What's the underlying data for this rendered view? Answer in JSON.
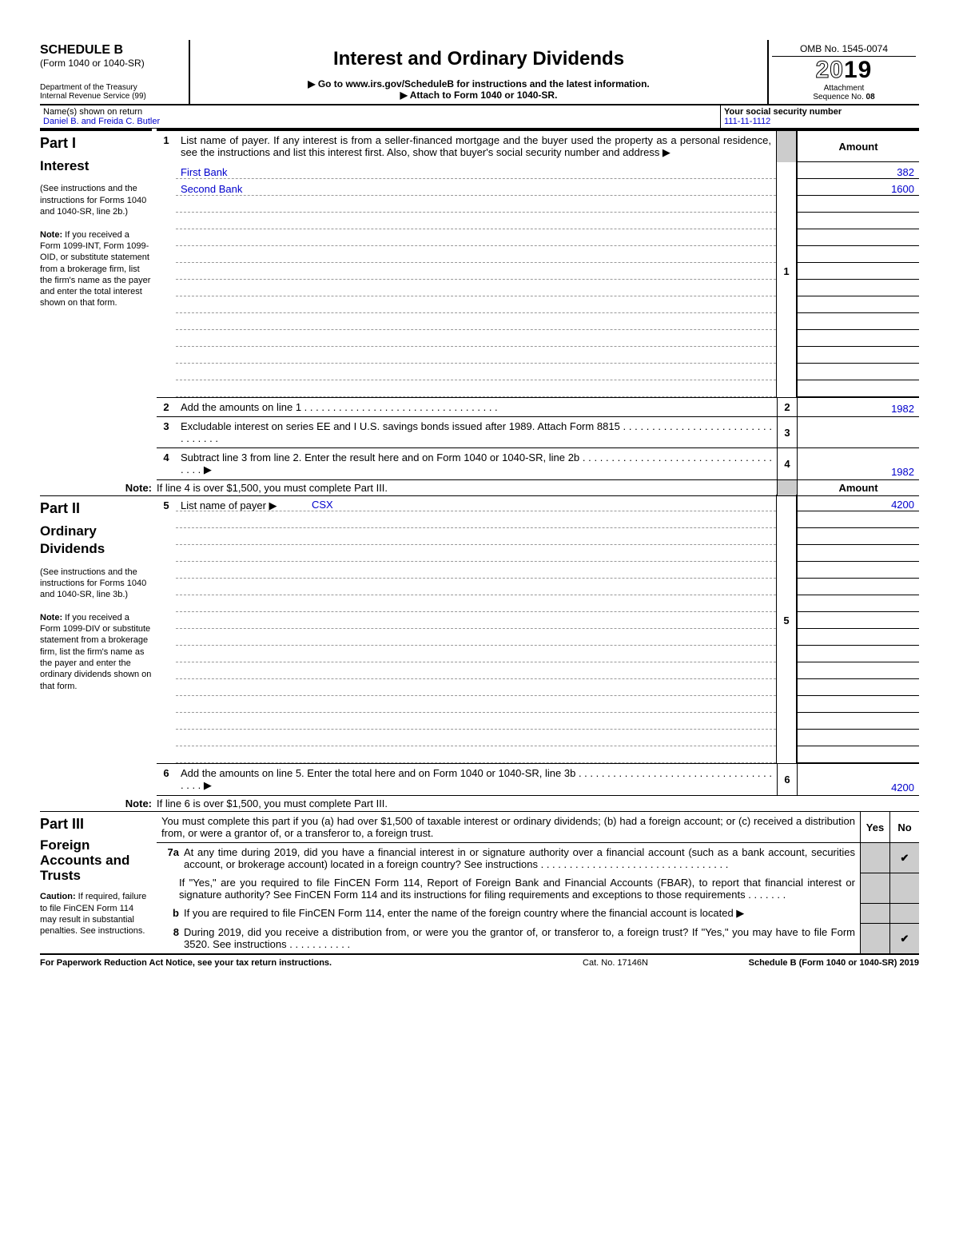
{
  "header": {
    "schedule": "SCHEDULE B",
    "form_ref": "(Form 1040 or 1040-SR)",
    "dept1": "Department of the Treasury",
    "dept2": "Internal Revenue Service (99)",
    "title": "Interest and Ordinary Dividends",
    "instruction1": "▶ Go to www.irs.gov/ScheduleB for instructions and the latest information.",
    "instruction2": "▶ Attach to Form 1040 or 1040-SR.",
    "omb": "OMB No. 1545-0074",
    "year_outline": "20",
    "year_solid": "19",
    "attach1": "Attachment",
    "attach2": "Sequence No. ",
    "attach_no": "08"
  },
  "name_row": {
    "label": "Name(s) shown on return",
    "name": "Daniel B. and Freida C. Butler",
    "ssn_label": "Your social security number",
    "ssn": "111-11-1112"
  },
  "part1": {
    "title": "Part I",
    "subtitle": "Interest",
    "side_text1": "(See instructions and the instructions for Forms 1040 and 1040-SR, line 2b.)",
    "side_note_label": "Note:",
    "side_note": "If you received a Form 1099-INT, Form 1099-OID, or substitute statement from a brokerage firm, list the firm's name as the payer and enter the total interest shown on that form.",
    "line1_num": "1",
    "line1_text": "List name of payer. If any interest is from a seller-financed mortgage and the buyer used the property as a personal residence, see the instructions and list this interest first. Also, show that buyer's social security number and address ▶",
    "amount_header": "Amount",
    "payers": [
      {
        "name": "First Bank",
        "amount": "382"
      },
      {
        "name": "Second Bank",
        "amount": "1600"
      },
      {
        "name": "",
        "amount": ""
      },
      {
        "name": "",
        "amount": ""
      },
      {
        "name": "",
        "amount": ""
      },
      {
        "name": "",
        "amount": ""
      },
      {
        "name": "",
        "amount": ""
      },
      {
        "name": "",
        "amount": ""
      },
      {
        "name": "",
        "amount": ""
      },
      {
        "name": "",
        "amount": ""
      },
      {
        "name": "",
        "amount": ""
      },
      {
        "name": "",
        "amount": ""
      },
      {
        "name": "",
        "amount": ""
      },
      {
        "name": "",
        "amount": ""
      }
    ],
    "numbox1": "1",
    "line2_num": "2",
    "line2_text": "Add the amounts on line 1",
    "line2_numbox": "2",
    "line2_amt": "1982",
    "line3_num": "3",
    "line3_text": "Excludable interest on series EE and I U.S. savings bonds issued after 1989. Attach Form 8815",
    "line3_numbox": "3",
    "line3_amt": "",
    "line4_num": "4",
    "line4_text": "Subtract line 3 from line 2. Enter the result here and on Form 1040 or 1040-SR, line 2b",
    "line4_arrow": "▶",
    "line4_numbox": "4",
    "line4_amt": "1982",
    "note_label": "Note:",
    "note_text": "If line 4 is over $1,500, you must complete Part III."
  },
  "part2": {
    "title": "Part II",
    "subtitle": "Ordinary Dividends",
    "side_text1": "(See instructions and the instructions for Forms 1040 and 1040-SR, line 3b.)",
    "side_note_label": "Note:",
    "side_note": "If you received a Form 1099-DIV or substitute statement from a brokerage firm, list the firm's name as the payer and enter the ordinary dividends shown on that form.",
    "amount_header": "Amount",
    "line5_num": "5",
    "line5_text": "List name of payer ▶",
    "payers": [
      {
        "name": "CSX",
        "amount": "4200"
      },
      {
        "name": "",
        "amount": ""
      },
      {
        "name": "",
        "amount": ""
      },
      {
        "name": "",
        "amount": ""
      },
      {
        "name": "",
        "amount": ""
      },
      {
        "name": "",
        "amount": ""
      },
      {
        "name": "",
        "amount": ""
      },
      {
        "name": "",
        "amount": ""
      },
      {
        "name": "",
        "amount": ""
      },
      {
        "name": "",
        "amount": ""
      },
      {
        "name": "",
        "amount": ""
      },
      {
        "name": "",
        "amount": ""
      },
      {
        "name": "",
        "amount": ""
      },
      {
        "name": "",
        "amount": ""
      },
      {
        "name": "",
        "amount": ""
      },
      {
        "name": "",
        "amount": ""
      }
    ],
    "numbox5": "5",
    "line6_num": "6",
    "line6_text": "Add the amounts on line 5. Enter the total here and on Form 1040 or 1040-SR, line 3b",
    "line6_arrow": "▶",
    "line6_numbox": "6",
    "line6_amt": "4200",
    "note_label": "Note:",
    "note_text": "If line 6 is over $1,500, you must complete Part III."
  },
  "part3": {
    "title": "Part III",
    "subtitle": "Foreign Accounts and Trusts",
    "caution_label": "Caution:",
    "caution_text": "If required, failure to file FinCEN Form 114 may result in substantial penalties. See instructions.",
    "intro": "You must complete this part if you (a) had over $1,500 of taxable interest or ordinary dividends; (b) had a foreign account; or (c) received a distribution from, or were a grantor of, or a transferor to, a foreign trust.",
    "yes": "Yes",
    "no": "No",
    "q7a_num": "7a",
    "q7a_text": "At any time during 2019, did you have a financial interest in or signature authority over a financial account (such as a bank account, securities account, or brokerage account) located in a foreign country? See instructions",
    "q7a_ans_yes": "",
    "q7a_ans_no": "✔",
    "q7a2_text": "If \"Yes,\" are you required to file FinCEN Form 114, Report of Foreign Bank and Financial Accounts (FBAR), to report that financial interest or signature authority? See FinCEN Form 114 and its instructions for filing requirements and exceptions to those requirements",
    "q7b_num": "b",
    "q7b_text": "If you are required to file FinCEN Form 114, enter the name of the foreign country where the financial account is located ▶",
    "q8_num": "8",
    "q8_text": "During 2019, did you receive a distribution from, or were you the grantor of, or transferor to, a foreign trust? If \"Yes,\" you may have to file Form 3520. See instructions",
    "q8_ans_yes": "",
    "q8_ans_no": "✔"
  },
  "footer": {
    "left": "For Paperwork Reduction Act Notice, see your tax return instructions.",
    "center": "Cat. No. 17146N",
    "right": "Schedule B (Form 1040 or 1040-SR) 2019"
  }
}
